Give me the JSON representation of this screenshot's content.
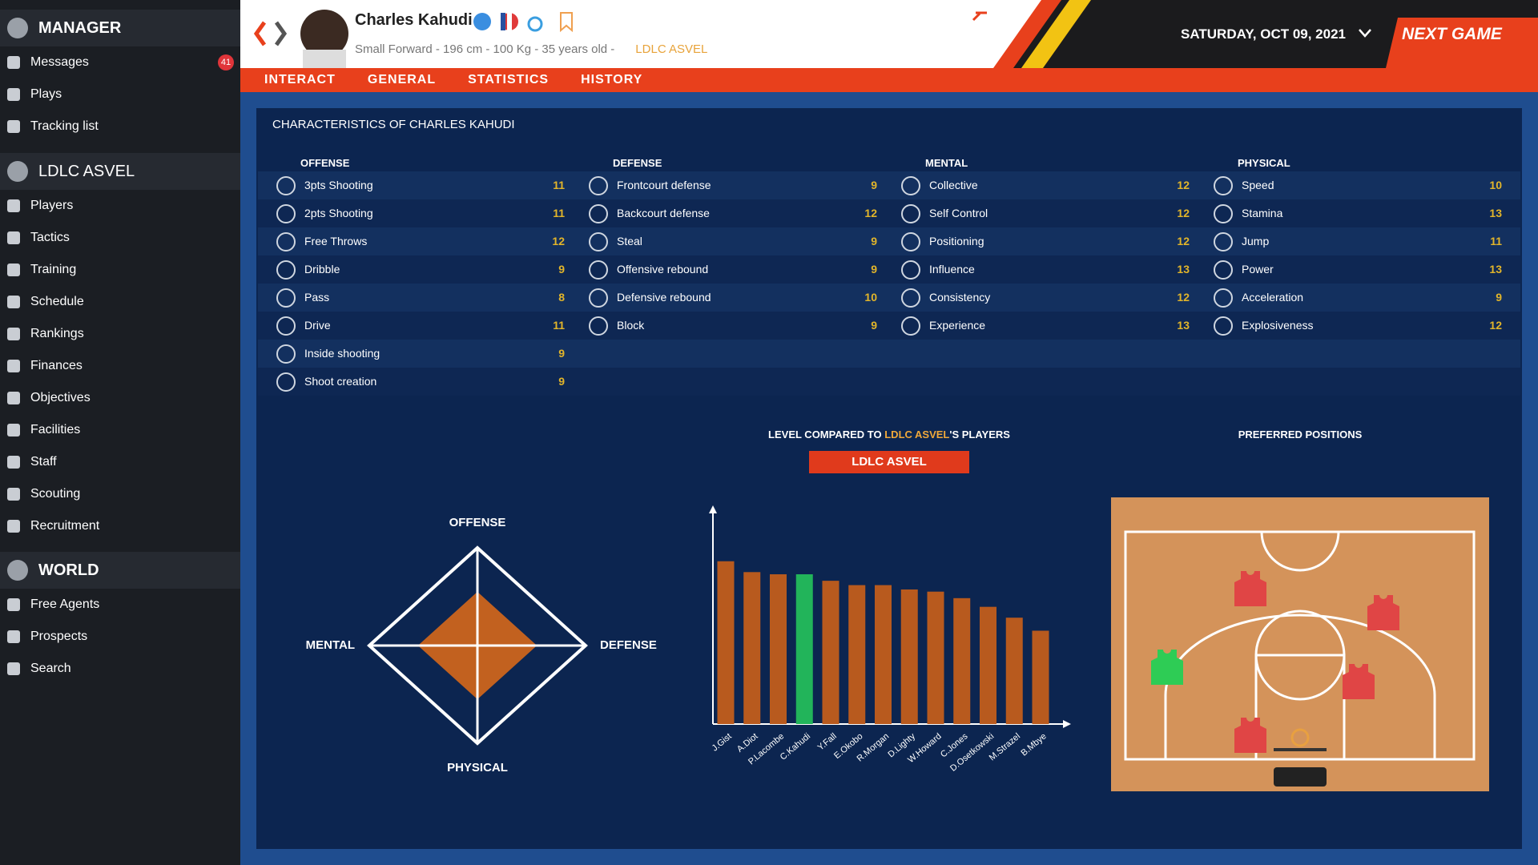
{
  "sidebar": {
    "sections": [
      {
        "title": "MANAGER",
        "items": [
          {
            "label": "Messages",
            "badge": 41
          },
          {
            "label": "Plays"
          },
          {
            "label": "Tracking list"
          }
        ]
      },
      {
        "title": "LDLC ASVEL",
        "items": [
          {
            "label": "Players"
          },
          {
            "label": "Tactics"
          },
          {
            "label": "Training"
          },
          {
            "label": "Schedule"
          },
          {
            "label": "Rankings"
          },
          {
            "label": "Finances"
          },
          {
            "label": "Objectives"
          },
          {
            "label": "Facilities"
          },
          {
            "label": "Staff"
          },
          {
            "label": "Scouting"
          },
          {
            "label": "Recruitment"
          }
        ]
      },
      {
        "title": "WORLD",
        "items": [
          {
            "label": "Free Agents"
          },
          {
            "label": "Prospects"
          },
          {
            "label": "Search"
          }
        ]
      }
    ]
  },
  "header": {
    "name": "Charles Kahudi",
    "details": "Small Forward - 196 cm - 100 Kg - 35 years old -",
    "club": "LDLC ASVEL",
    "date": "SATURDAY, OCT 09, 2021",
    "next_game": "NEXT GAME"
  },
  "nav": [
    "INTERACT",
    "GENERAL",
    "STATISTICS",
    "HISTORY"
  ],
  "characteristics": {
    "title": "CHARACTERISTICS OF CHARLES KAHUDI",
    "value_color": "#e2b52a",
    "groups": [
      {
        "name": "OFFENSE",
        "attributes": [
          {
            "name": "3pts Shooting",
            "value": 11
          },
          {
            "name": "2pts Shooting",
            "value": 11
          },
          {
            "name": "Free Throws",
            "value": 12
          },
          {
            "name": "Dribble",
            "value": 9
          },
          {
            "name": "Pass",
            "value": 8
          },
          {
            "name": "Drive",
            "value": 11
          },
          {
            "name": "Inside shooting",
            "value": 9
          },
          {
            "name": "Shoot creation",
            "value": 9
          }
        ]
      },
      {
        "name": "DEFENSE",
        "attributes": [
          {
            "name": "Frontcourt defense",
            "value": 9
          },
          {
            "name": "Backcourt defense",
            "value": 12
          },
          {
            "name": "Steal",
            "value": 9
          },
          {
            "name": "Offensive rebound",
            "value": 9
          },
          {
            "name": "Defensive rebound",
            "value": 10
          },
          {
            "name": "Block",
            "value": 9
          }
        ]
      },
      {
        "name": "MENTAL",
        "attributes": [
          {
            "name": "Collective",
            "value": 12
          },
          {
            "name": "Self Control",
            "value": 12
          },
          {
            "name": "Positioning",
            "value": 12
          },
          {
            "name": "Influence",
            "value": 13
          },
          {
            "name": "Consistency",
            "value": 12
          },
          {
            "name": "Experience",
            "value": 13
          }
        ]
      },
      {
        "name": "PHYSICAL",
        "attributes": [
          {
            "name": "Speed",
            "value": 10
          },
          {
            "name": "Stamina",
            "value": 13
          },
          {
            "name": "Jump",
            "value": 11
          },
          {
            "name": "Power",
            "value": 13
          },
          {
            "name": "Acceleration",
            "value": 9
          },
          {
            "name": "Explosiveness",
            "value": 12
          }
        ]
      }
    ]
  },
  "profile_chart": {
    "type": "radar",
    "axes": [
      "OFFENSE",
      "DEFENSE",
      "PHYSICAL",
      "MENTAL"
    ],
    "values": [
      11,
      11,
      11,
      11
    ],
    "rlim": [
      0,
      20
    ],
    "color": "#c2611f"
  },
  "level_chart": {
    "type": "bar",
    "title_prefix": "LEVEL COMPARED TO",
    "title_team": "LDLC ASVEL",
    "title_suffix": "'S PLAYERS",
    "team_filter": "LDLC ASVEL",
    "categories": [
      "J.Gist",
      "A.Diot",
      "P.Lacombe",
      "C.Kahudi",
      "Y.Fall",
      "E.Okobo",
      "R.Morgan",
      "D.Lighty",
      "W.Howard",
      "C.Jones",
      "D.Osetkowski",
      "M.Strazel",
      "B.Mbye"
    ],
    "values": [
      75,
      70,
      69,
      69,
      66,
      64,
      64,
      62,
      61,
      58,
      54,
      49,
      43
    ],
    "ylim": [
      0,
      100
    ],
    "colors": [
      "#b85a1e",
      "#b85a1e",
      "#b85a1e",
      "#22b45a",
      "#b85a1e",
      "#b85a1e",
      "#b85a1e",
      "#b85a1e",
      "#b85a1e",
      "#b85a1e",
      "#b85a1e",
      "#b85a1e",
      "#b85a1e"
    ]
  },
  "preferred_positions": {
    "title": "PREFERRED POSITIONS"
  }
}
